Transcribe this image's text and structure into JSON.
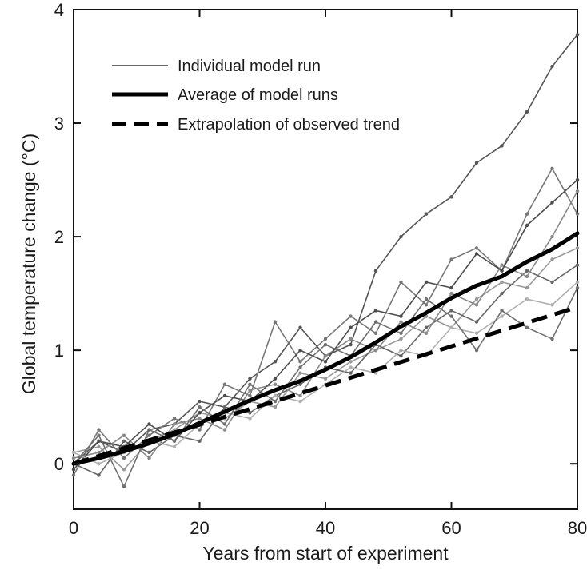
{
  "chart_data": {
    "type": "line",
    "xlabel": "Years from start of experiment",
    "ylabel": "Global temperature change (°C)",
    "xlim": [
      0,
      80
    ],
    "ylim": [
      -0.4,
      4
    ],
    "x_ticks": [
      0,
      20,
      40,
      60,
      80
    ],
    "y_ticks": [
      0,
      1,
      2,
      3,
      4
    ],
    "grid": false,
    "legend_position": "top-left",
    "legend": [
      {
        "label": "Individual model run",
        "style": "thin-gray"
      },
      {
        "label": "Average of model runs",
        "style": "thick-black"
      },
      {
        "label": "Extrapolation of observed trend",
        "style": "dashed-black"
      }
    ],
    "series": [
      {
        "name": "Average of model runs",
        "style": "thick-black",
        "x": [
          0,
          4,
          8,
          12,
          16,
          20,
          24,
          28,
          32,
          36,
          40,
          44,
          48,
          52,
          56,
          60,
          64,
          68,
          72,
          76,
          80
        ],
        "y": [
          0,
          0.05,
          0.11,
          0.18,
          0.26,
          0.36,
          0.46,
          0.56,
          0.65,
          0.73,
          0.83,
          0.94,
          1.07,
          1.21,
          1.33,
          1.46,
          1.57,
          1.65,
          1.78,
          1.89,
          2.03
        ]
      },
      {
        "name": "Extrapolation of observed trend",
        "style": "dashed-black",
        "x": [
          0,
          80
        ],
        "y": [
          0,
          1.38
        ]
      },
      {
        "name": "Individual model run",
        "style": "thin-gray",
        "color": "#555555",
        "x": [
          0,
          4,
          8,
          12,
          16,
          20,
          24,
          28,
          32,
          36,
          40,
          44,
          48,
          52,
          56,
          60,
          64,
          68,
          72,
          76,
          80
        ],
        "y": [
          0,
          0.2,
          0.1,
          0.3,
          0.35,
          0.55,
          0.5,
          0.75,
          0.9,
          1.2,
          0.95,
          1.05,
          1.7,
          2.0,
          2.2,
          2.35,
          2.65,
          2.8,
          3.1,
          3.5,
          3.78
        ]
      },
      {
        "name": "Individual model run",
        "style": "thin-gray",
        "color": "#777777",
        "x": [
          0,
          4,
          8,
          12,
          16,
          20,
          24,
          28,
          32,
          36,
          40,
          44,
          48,
          52,
          56,
          60,
          64,
          68,
          72,
          76,
          80
        ],
        "y": [
          -0.1,
          0.3,
          0.05,
          0.25,
          0.4,
          0.3,
          0.7,
          0.6,
          1.25,
          0.9,
          1.1,
          1.3,
          1.15,
          1.6,
          1.4,
          1.8,
          1.9,
          1.7,
          2.2,
          2.6,
          2.2
        ]
      },
      {
        "name": "Individual model run",
        "style": "thin-gray",
        "color": "#999999",
        "x": [
          0,
          4,
          8,
          12,
          16,
          20,
          24,
          28,
          32,
          36,
          40,
          44,
          48,
          52,
          56,
          60,
          64,
          68,
          72,
          76,
          80
        ],
        "y": [
          0.1,
          0.15,
          -0.05,
          0.2,
          0.3,
          0.45,
          0.4,
          0.55,
          0.5,
          0.8,
          0.75,
          0.9,
          1.0,
          1.1,
          1.3,
          1.2,
          1.45,
          1.6,
          1.55,
          1.8,
          1.9
        ]
      },
      {
        "name": "Individual model run",
        "style": "thin-gray",
        "color": "#666666",
        "x": [
          0,
          4,
          8,
          12,
          16,
          20,
          24,
          28,
          32,
          36,
          40,
          44,
          48,
          52,
          56,
          60,
          64,
          68,
          72,
          76,
          80
        ],
        "y": [
          0,
          -0.1,
          0.2,
          0.1,
          0.25,
          0.2,
          0.5,
          0.45,
          0.6,
          0.7,
          0.85,
          0.8,
          1.05,
          0.95,
          1.2,
          1.35,
          1.25,
          1.5,
          1.7,
          1.6,
          1.75
        ]
      },
      {
        "name": "Individual model run",
        "style": "thin-gray",
        "color": "#8a8a8a",
        "x": [
          0,
          4,
          8,
          12,
          16,
          20,
          24,
          28,
          32,
          36,
          40,
          44,
          48,
          52,
          56,
          60,
          64,
          68,
          72,
          76,
          80
        ],
        "y": [
          0.05,
          0.1,
          0.25,
          0.05,
          0.35,
          0.4,
          0.3,
          0.65,
          0.7,
          0.6,
          0.95,
          1.1,
          1.0,
          1.25,
          1.15,
          1.5,
          1.4,
          1.75,
          1.65,
          2.0,
          2.4
        ]
      },
      {
        "name": "Individual model run",
        "style": "thin-gray",
        "color": "#4d4d4d",
        "x": [
          0,
          4,
          8,
          12,
          16,
          20,
          24,
          28,
          32,
          36,
          40,
          44,
          48,
          52,
          56,
          60,
          64,
          68,
          72,
          76,
          80
        ],
        "y": [
          -0.05,
          0.2,
          0.15,
          0.35,
          0.2,
          0.45,
          0.6,
          0.55,
          0.75,
          1.0,
          0.9,
          1.2,
          1.35,
          1.3,
          1.6,
          1.55,
          1.85,
          1.7,
          2.1,
          2.3,
          2.5
        ]
      },
      {
        "name": "Individual model run",
        "style": "thin-gray",
        "color": "#b0b0b0",
        "x": [
          0,
          4,
          8,
          12,
          16,
          20,
          24,
          28,
          32,
          36,
          40,
          44,
          48,
          52,
          56,
          60,
          64,
          68,
          72,
          76,
          80
        ],
        "y": [
          0.1,
          0,
          0.1,
          0.2,
          0.15,
          0.35,
          0.45,
          0.4,
          0.6,
          0.55,
          0.7,
          0.85,
          0.8,
          1.0,
          0.95,
          1.2,
          1.15,
          1.3,
          1.45,
          1.4,
          1.6
        ]
      },
      {
        "name": "Individual model run",
        "style": "thin-gray",
        "color": "#707070",
        "x": [
          0,
          4,
          8,
          12,
          16,
          20,
          24,
          28,
          32,
          36,
          40,
          44,
          48,
          52,
          56,
          60,
          64,
          68,
          72,
          76,
          80
        ],
        "y": [
          0,
          0.25,
          -0.2,
          0.3,
          0.2,
          0.5,
          0.35,
          0.7,
          0.55,
          0.85,
          1.05,
          0.95,
          1.25,
          1.15,
          1.45,
          1.3,
          1.0,
          1.35,
          1.2,
          1.1,
          1.55
        ]
      }
    ]
  }
}
